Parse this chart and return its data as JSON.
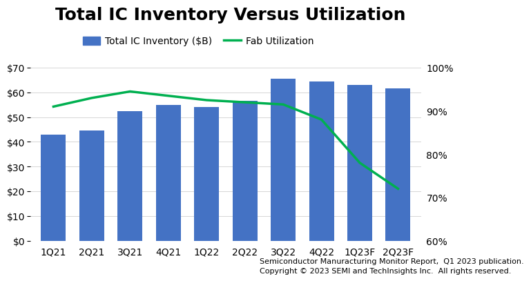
{
  "title": "Total IC Inventory Versus Utilization",
  "categories": [
    "1Q21",
    "2Q21",
    "3Q21",
    "4Q21",
    "1Q22",
    "2Q22",
    "3Q22",
    "4Q22",
    "1Q23F",
    "2Q23F"
  ],
  "inventory_values": [
    43,
    44.5,
    52.5,
    55,
    54,
    56.5,
    65.5,
    64.5,
    63,
    61.5
  ],
  "utilization_values": [
    91,
    93,
    94.5,
    93.5,
    92.5,
    92,
    91.5,
    88,
    78,
    72
  ],
  "bar_color": "#4472C4",
  "line_color": "#00B050",
  "left_ylim": [
    0,
    70
  ],
  "right_ylim": [
    60,
    100
  ],
  "left_yticks": [
    0,
    10,
    20,
    30,
    40,
    50,
    60,
    70
  ],
  "left_yticklabels": [
    "$0",
    "$10",
    "$20",
    "$30",
    "$40",
    "$50",
    "$60",
    "$70"
  ],
  "right_yticks": [
    60,
    70,
    80,
    90,
    100
  ],
  "right_yticklabels": [
    "60%",
    "70%",
    "80%",
    "90%",
    "100%"
  ],
  "legend_inventory": "Total IC Inventory ($B)",
  "legend_utilization": "Fab Utilization",
  "footnote_line1": "Semiconductor Manuracturing Monitor Report,  Q1 2023 publication.",
  "footnote_line2": "Copyright © 2023 SEMI and TechInsights Inc.  All rights reserved.",
  "background_color": "#FFFFFF",
  "title_fontsize": 18,
  "tick_fontsize": 10,
  "legend_fontsize": 10,
  "footnote_fontsize": 8
}
